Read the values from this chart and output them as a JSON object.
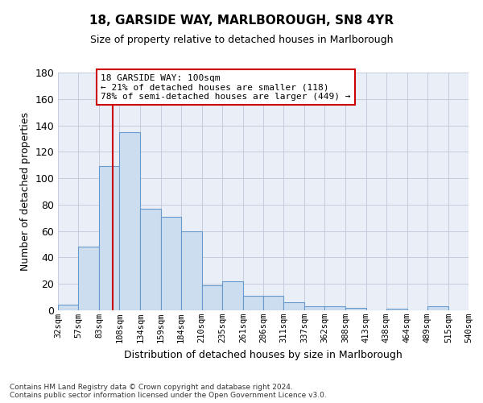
{
  "title": "18, GARSIDE WAY, MARLBOROUGH, SN8 4YR",
  "subtitle": "Size of property relative to detached houses in Marlborough",
  "xlabel": "Distribution of detached houses by size in Marlborough",
  "ylabel": "Number of detached properties",
  "footer_line1": "Contains HM Land Registry data © Crown copyright and database right 2024.",
  "footer_line2": "Contains public sector information licensed under the Open Government Licence v3.0.",
  "bar_color": "#ccddf0",
  "bar_edge_color": "#6699cc",
  "annotation_line1": "18 GARSIDE WAY: 100sqm",
  "annotation_line2": "← 21% of detached houses are smaller (118)",
  "annotation_line3": "78% of semi-detached houses are larger (449) →",
  "annotation_box_color": "white",
  "annotation_box_edge_color": "#cc0000",
  "vline_color": "#cc0000",
  "vline_x": 100,
  "bin_edges": [
    32,
    57,
    83,
    108,
    134,
    159,
    184,
    210,
    235,
    261,
    286,
    311,
    337,
    362,
    388,
    413,
    438,
    464,
    489,
    515,
    540
  ],
  "bar_heights": [
    4,
    48,
    109,
    135,
    77,
    71,
    60,
    19,
    22,
    11,
    11,
    6,
    3,
    3,
    2,
    0,
    1,
    0,
    3,
    0
  ],
  "ylim": [
    0,
    180
  ],
  "yticks": [
    0,
    20,
    40,
    60,
    80,
    100,
    120,
    140,
    160,
    180
  ],
  "grid_color": "#c0c8d8",
  "background_color": "#eaeff7"
}
